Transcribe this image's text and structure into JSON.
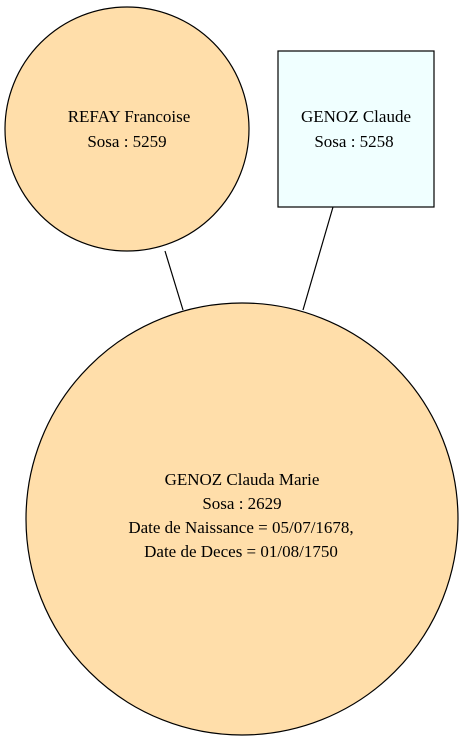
{
  "diagram": {
    "colors": {
      "female_fill": "#ffdeaa",
      "male_fill": "#f0ffff",
      "stroke": "#000000",
      "background": "#ffffff"
    },
    "nodes": [
      {
        "id": "mother",
        "shape": "circle",
        "lines": [
          "REFAY Francoise",
          "Sosa : 5259"
        ]
      },
      {
        "id": "father",
        "shape": "box",
        "lines": [
          "GENOZ Claude",
          "Sosa : 5258"
        ]
      },
      {
        "id": "child",
        "shape": "circle",
        "lines": [
          "GENOZ Clauda Marie",
          "Sosa : 2629",
          "Date de Naissance = 05/07/1678,",
          "Date de Deces = 01/08/1750"
        ]
      }
    ],
    "edges": [
      {
        "from": "mother",
        "to": "child"
      },
      {
        "from": "father",
        "to": "child"
      }
    ]
  }
}
